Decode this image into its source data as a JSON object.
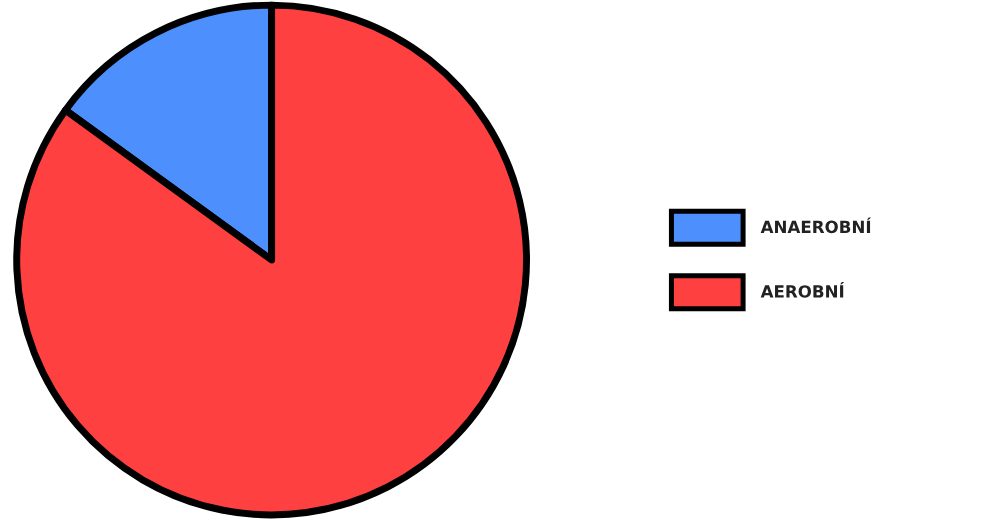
{
  "chart_data": {
    "type": "pie",
    "categories": [
      "ANAEROBNÍ",
      "AEROBNÍ"
    ],
    "values": [
      15,
      85
    ],
    "colors": [
      "#4d8ffc",
      "#fe4040"
    ],
    "legend": "right"
  }
}
